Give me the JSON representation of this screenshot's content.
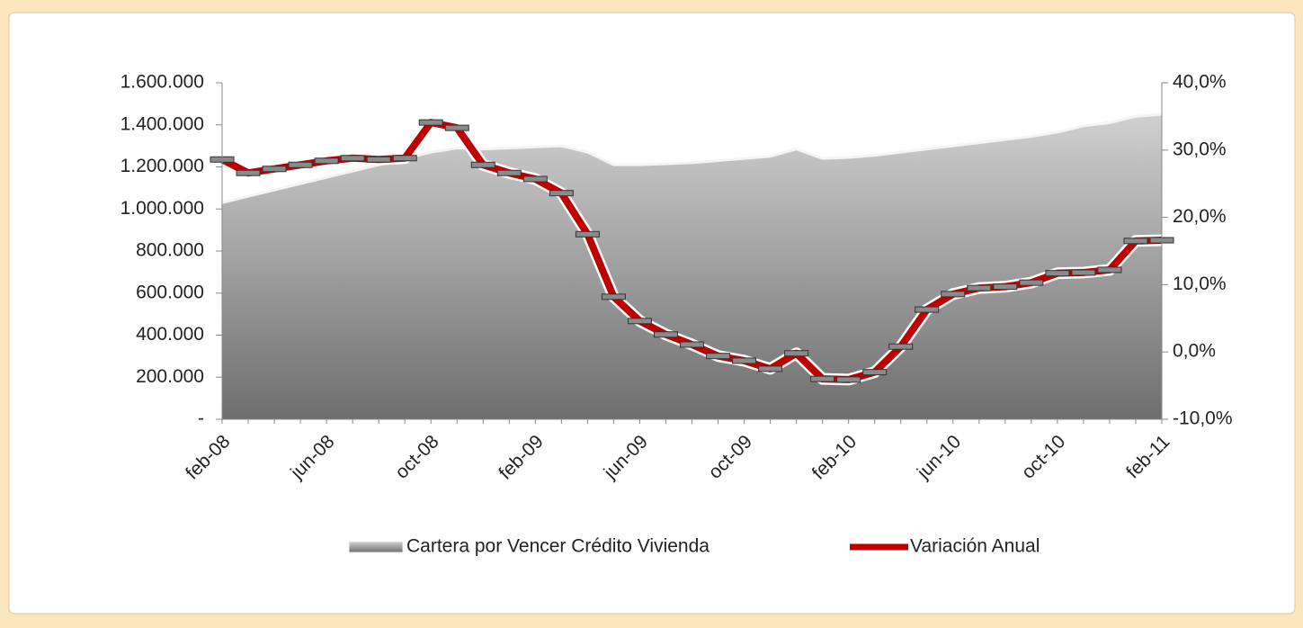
{
  "chart_data": {
    "type": "area-line",
    "categories": [
      "feb-08",
      null,
      null,
      null,
      "jun-08",
      null,
      null,
      null,
      "oct-08",
      null,
      null,
      null,
      "feb-09",
      null,
      null,
      null,
      "jun-09",
      null,
      null,
      null,
      "oct-09",
      null,
      null,
      null,
      "feb-10",
      null,
      null,
      null,
      "jun-10",
      null,
      null,
      null,
      "oct-10",
      null,
      null,
      null,
      "feb-11"
    ],
    "series": [
      {
        "name": "Cartera por Vencer Crédito Vivienda",
        "type": "area",
        "color": "#9a9a9a",
        "axis": "y",
        "values": [
          1030000,
          1060000,
          1090000,
          1120000,
          1150000,
          1180000,
          1210000,
          1240000,
          1270000,
          1290000,
          1285000,
          1290000,
          1295000,
          1300000,
          1270000,
          1210000,
          1210000,
          1215000,
          1220000,
          1230000,
          1240000,
          1250000,
          1285000,
          1240000,
          1245000,
          1255000,
          1270000,
          1285000,
          1300000,
          1315000,
          1330000,
          1345000,
          1365000,
          1395000,
          1410000,
          1440000,
          1450000
        ]
      },
      {
        "name": "Variación Anual",
        "type": "line",
        "color": "#c00000",
        "axis": "y2",
        "values": [
          28.6,
          26.6,
          27.2,
          27.8,
          28.4,
          28.8,
          28.6,
          28.8,
          34.1,
          33.3,
          27.8,
          26.6,
          25.7,
          23.6,
          17.5,
          8.2,
          4.6,
          2.6,
          1.1,
          -0.6,
          -1.3,
          -2.5,
          -0.2,
          -4.0,
          -4.1,
          -3.0,
          0.8,
          6.3,
          8.6,
          9.5,
          9.7,
          10.3,
          11.7,
          11.8,
          12.2,
          16.5,
          16.6
        ]
      }
    ],
    "ylim": [
      0,
      1600000
    ],
    "yticks": [
      {
        "value": 0,
        "label": "-"
      },
      {
        "value": 200000,
        "label": "200.000"
      },
      {
        "value": 400000,
        "label": "400.000"
      },
      {
        "value": 600000,
        "label": "600.000"
      },
      {
        "value": 800000,
        "label": "800.000"
      },
      {
        "value": 1000000,
        "label": "1.000.000"
      },
      {
        "value": 1200000,
        "label": "1.200.000"
      },
      {
        "value": 1400000,
        "label": "1.400.000"
      },
      {
        "value": 1600000,
        "label": "1.600.000"
      }
    ],
    "y2lim": [
      -10,
      40
    ],
    "y2ticks": [
      {
        "value": -10,
        "label": "-10,0%"
      },
      {
        "value": 0,
        "label": "0,0%"
      },
      {
        "value": 10,
        "label": "10,0%"
      },
      {
        "value": 20,
        "label": "20,0%"
      },
      {
        "value": 30,
        "label": "30,0%"
      },
      {
        "value": 40,
        "label": "40,0%"
      }
    ],
    "legend": "bottom"
  }
}
